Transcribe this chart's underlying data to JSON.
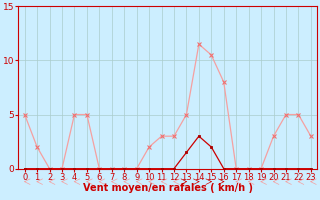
{
  "hours": [
    0,
    1,
    2,
    3,
    4,
    5,
    6,
    7,
    8,
    9,
    10,
    11,
    12,
    13,
    14,
    15,
    16,
    17,
    18,
    19,
    20,
    21,
    22,
    23
  ],
  "rafales": [
    5,
    2,
    0,
    0,
    5,
    5,
    0,
    0,
    0,
    0,
    2,
    3,
    3,
    5,
    11.5,
    10.5,
    8,
    0,
    0,
    0,
    3,
    5,
    5,
    3
  ],
  "vent_moyen": [
    0,
    0,
    0,
    0,
    0,
    0,
    0,
    0,
    0,
    0,
    0,
    0,
    0,
    1.5,
    3,
    2,
    0,
    0,
    0,
    0,
    0,
    0,
    0,
    0
  ],
  "line_color_rafales": "#f5a0a0",
  "line_color_vent": "#cc0000",
  "marker_color_rafales": "#f07070",
  "marker_color_vent": "#aa0000",
  "bg_color": "#cceeff",
  "grid_color": "#aacccc",
  "axis_label_color": "#cc0000",
  "tick_color": "#cc0000",
  "spine_color": "#cc0000",
  "ylabel_ticks": [
    0,
    5,
    10,
    15
  ],
  "ylim": [
    0,
    15
  ],
  "xlim": [
    0,
    23
  ],
  "xlabel": "Vent moyen/en rafales ( km/h )",
  "xlabel_fontsize": 7,
  "tick_fontsize": 6.5
}
